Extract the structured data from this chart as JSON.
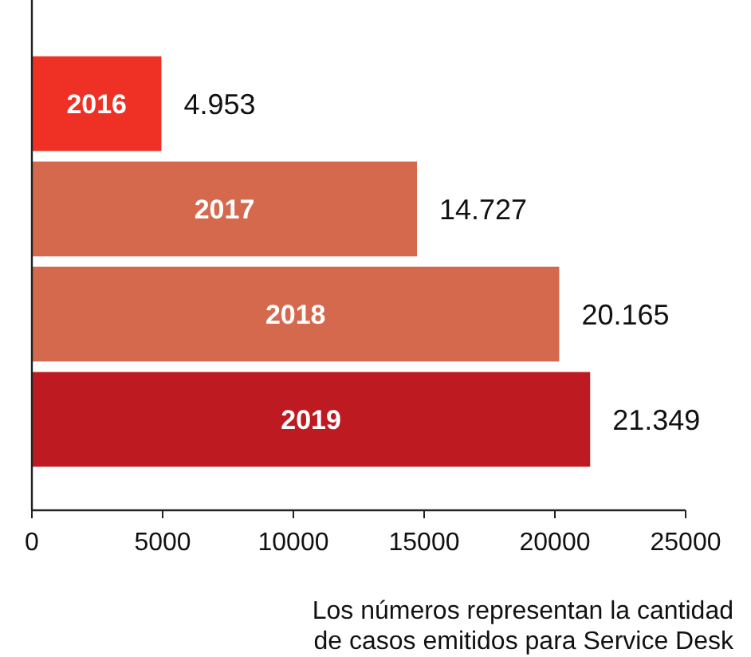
{
  "chart_data": {
    "type": "bar",
    "orientation": "horizontal",
    "categories": [
      "2016",
      "2017",
      "2018",
      "2019"
    ],
    "values": [
      4953,
      14727,
      20165,
      21349
    ],
    "colors": [
      "#ee3124",
      "#d4694e",
      "#d4694e",
      "#be1a21"
    ],
    "value_labels": [
      "4.953",
      "14.727",
      "20.165",
      "21.349"
    ],
    "xlim": [
      0,
      25000
    ],
    "xticks": [
      0,
      5000,
      10000,
      15000,
      20000,
      25000
    ],
    "grid": false,
    "annotations": [
      "Los números representan la cantidad de casos emitidos para Service Desk"
    ]
  }
}
